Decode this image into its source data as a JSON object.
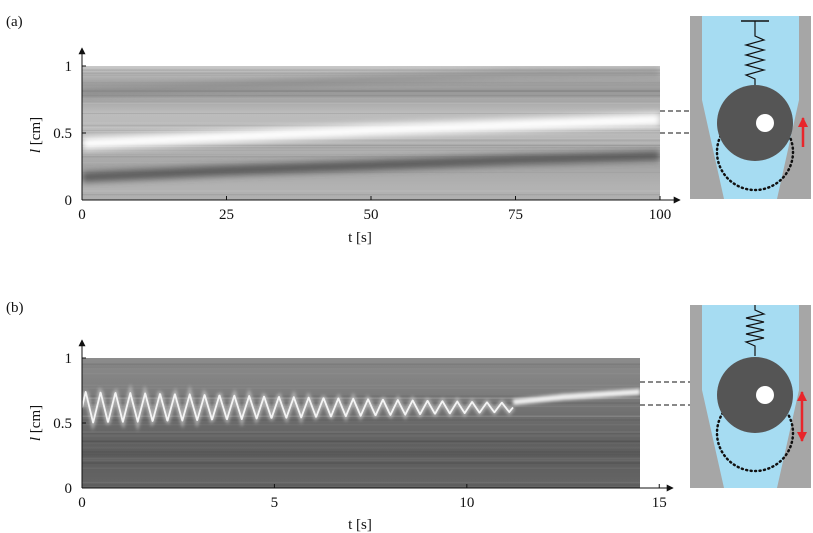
{
  "figure": {
    "panels": [
      {
        "label": "(a)",
        "xlabel": "t [s]",
        "ylabel_italic": "l",
        "ylabel_unit": " [cm]",
        "xticks": [
          "0",
          "25",
          "50",
          "75",
          "100"
        ],
        "yticks": [
          "0",
          "0.5",
          "1"
        ],
        "xlim": [
          0,
          100
        ],
        "ylim": [
          0,
          1
        ],
        "indicator_arrow": "single-up",
        "accent_color": "#e8262b"
      },
      {
        "label": "(b)",
        "xlabel": "t [s]",
        "ylabel_italic": "l",
        "ylabel_unit": " [cm]",
        "xticks": [
          "0",
          "5",
          "10",
          "15"
        ],
        "yticks": [
          "0",
          "0.5",
          "1"
        ],
        "xlim": [
          0,
          15
        ],
        "ylim": [
          0,
          1
        ],
        "indicator_arrow": "double",
        "accent_color": "#e8262b"
      }
    ],
    "schematic_colors": {
      "fluid": "#a6dcf2",
      "wall": "#a6a6a6",
      "bead": "#555555",
      "hole": "#ffffff"
    }
  },
  "chart_data": [
    {
      "type": "heatmap",
      "title": "",
      "xlabel": "t [s]",
      "ylabel": "l [cm]",
      "xlim": [
        0,
        100
      ],
      "ylim": [
        0,
        1
      ],
      "grid": false,
      "bright_band": {
        "x": [
          0,
          25,
          50,
          75,
          100
        ],
        "y": [
          0.42,
          0.47,
          0.52,
          0.56,
          0.6
        ]
      },
      "dark_band": {
        "x": [
          0,
          25,
          50,
          75,
          100
        ],
        "y": [
          0.17,
          0.22,
          0.26,
          0.3,
          0.33
        ]
      }
    },
    {
      "type": "heatmap",
      "title": "",
      "xlabel": "t [s]",
      "ylabel": "l [cm]",
      "xlim": [
        0,
        15
      ],
      "ylim": [
        0,
        1
      ],
      "grid": false,
      "oscillation": {
        "t_end": 11.2,
        "periods": 29,
        "center": 0.62,
        "amplitude_start": 0.12,
        "amplitude_end": 0.05
      },
      "steady_band": {
        "x": [
          11.2,
          12.5,
          14.5
        ],
        "y": [
          0.66,
          0.7,
          0.74
        ]
      }
    }
  ]
}
